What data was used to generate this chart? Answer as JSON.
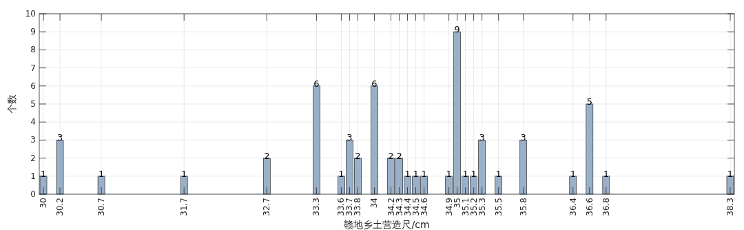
{
  "chart_data": {
    "type": "bar",
    "xlabel": "赣地乡土营造尺/cm",
    "ylabel": "个数",
    "x": [
      30,
      30.2,
      30.7,
      31.7,
      32.7,
      33.3,
      33.6,
      33.7,
      33.8,
      34,
      34.2,
      34.3,
      34.4,
      34.5,
      34.6,
      34.9,
      35,
      35.1,
      35.2,
      35.3,
      35.5,
      35.8,
      36.4,
      36.6,
      36.8,
      38.3
    ],
    "values": [
      1,
      3,
      1,
      1,
      2,
      6,
      1,
      3,
      2,
      6,
      2,
      2,
      1,
      1,
      1,
      1,
      9,
      1,
      1,
      3,
      1,
      3,
      1,
      5,
      1,
      1
    ],
    "color": "#9aafc8",
    "xlim": [
      29.95,
      38.35
    ],
    "xticks": [
      30,
      30.2,
      30.7,
      31.7,
      32.7,
      33.3,
      33.6,
      33.7,
      33.8,
      34,
      34.2,
      34.3,
      34.4,
      34.5,
      34.6,
      34.9,
      35,
      35.1,
      35.2,
      35.3,
      35.5,
      35.8,
      36.4,
      36.6,
      36.8,
      38.3
    ],
    "ylim": [
      0,
      10
    ],
    "yticks": [
      0,
      1,
      2,
      3,
      4,
      5,
      6,
      7,
      8,
      9,
      10
    ],
    "grid": true,
    "data_labels": true
  }
}
